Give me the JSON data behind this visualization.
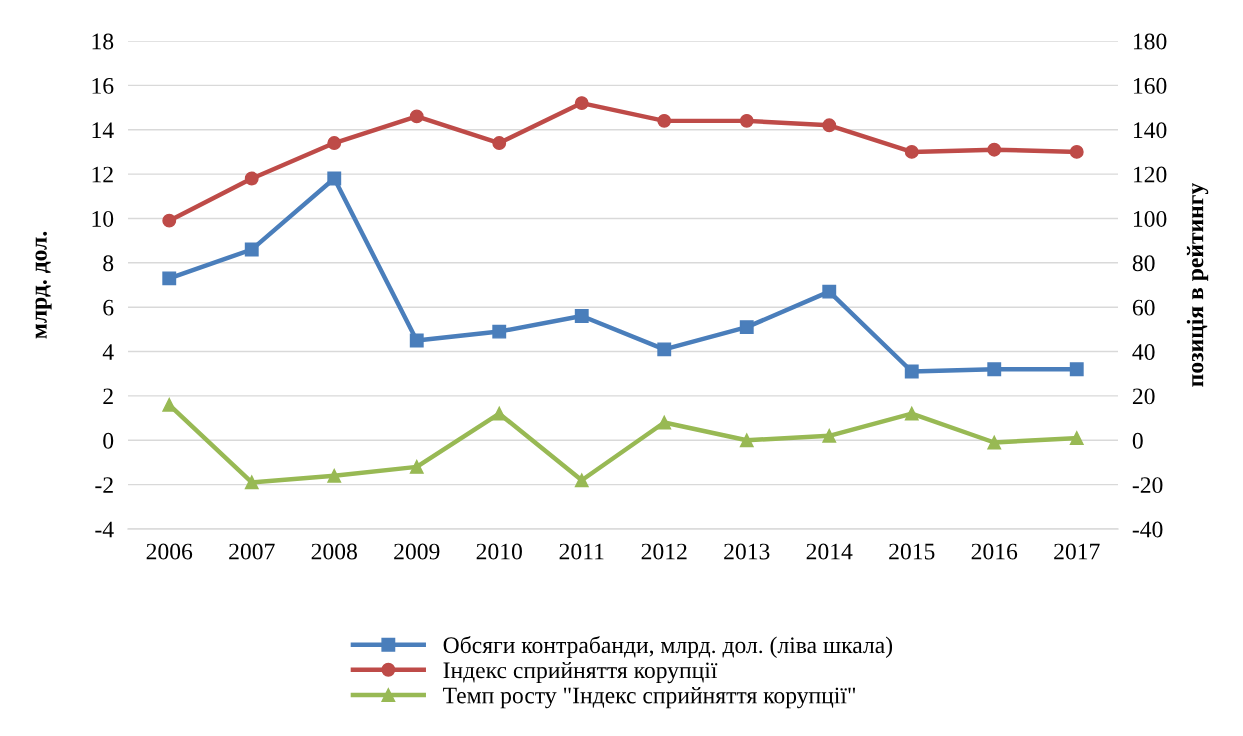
{
  "chart_data": {
    "type": "line",
    "categories": [
      "2006",
      "2007",
      "2008",
      "2009",
      "2010",
      "2011",
      "2012",
      "2013",
      "2014",
      "2015",
      "2016",
      "2017"
    ],
    "ylabel": "млрд. дол.",
    "y2label": "позиція в рейтингу",
    "ylim": [
      -4,
      18
    ],
    "yticks": [
      -4,
      -2,
      0,
      2,
      4,
      6,
      8,
      10,
      12,
      14,
      16,
      18
    ],
    "y2lim": [
      -40,
      180
    ],
    "y2ticks": [
      -40,
      -20,
      0,
      20,
      40,
      60,
      80,
      100,
      120,
      140,
      160,
      180
    ],
    "grid": "y",
    "legend": "bottom",
    "series": [
      {
        "name": "Обсяги контрабанди, млрд. дол. (ліва шкала)",
        "color": "#4a7ebb",
        "marker": "square",
        "values": [
          7.3,
          8.6,
          11.8,
          4.5,
          4.9,
          5.6,
          4.1,
          5.1,
          6.7,
          3.1,
          3.2,
          3.2
        ]
      },
      {
        "name": "Індекс сприйняття корупції",
        "color": "#be4b48",
        "marker": "circle",
        "axis": "y2",
        "values": [
          99,
          118,
          134,
          146,
          134,
          152,
          144,
          144,
          142,
          130,
          131,
          130
        ]
      },
      {
        "name": "Темп росту \"Індекс сприйняття корупції\"",
        "color": "#98b954",
        "marker": "triangle",
        "axis": "y2",
        "values": [
          16,
          -19,
          -16,
          -12,
          12,
          -18,
          8,
          0,
          2,
          12,
          -1,
          1
        ]
      }
    ]
  }
}
